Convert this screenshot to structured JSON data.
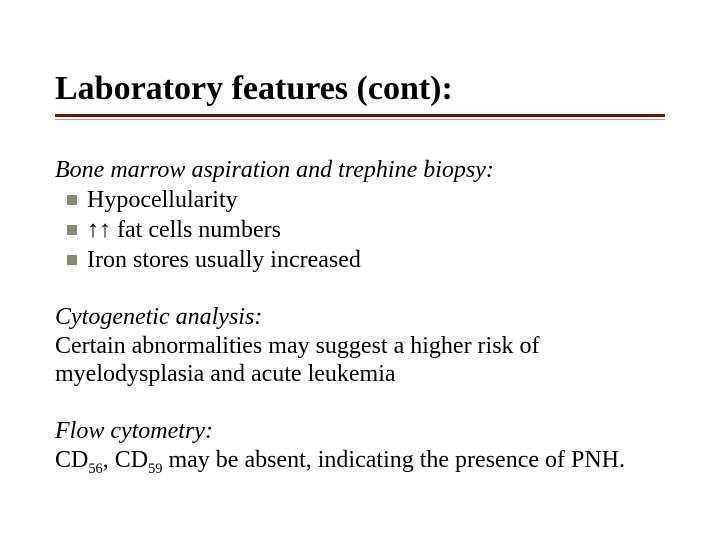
{
  "title": "Laboratory features (cont):",
  "colors": {
    "text": "#000000",
    "bg": "#ffffff",
    "rule_top": "#7d0d0d",
    "rule_bot": "#b9a87e",
    "bullet": "#888a74"
  },
  "typography": {
    "title_fontsize_pt": 26,
    "body_fontsize_pt": 18,
    "font_family": "Times New Roman",
    "title_bold": true,
    "section_head_italic": true
  },
  "sec1": {
    "head": "Bone marrow aspiration and trephine biopsy:",
    "b1": "Hypocellularity",
    "b2": "↑↑ fat cells numbers",
    "b3": "Iron stores usually increased"
  },
  "sec2": {
    "head": "Cytogenetic analysis:",
    "body": "Certain abnormalities may suggest a higher risk of myelodysplasia and acute leukemia"
  },
  "sec3": {
    "head": "Flow cytometry:",
    "cd1_label": "CD",
    "cd1_sub": "56",
    "sep": ", ",
    "cd2_label": "CD",
    "cd2_sub": "59",
    "tail": " may be absent, indicating the presence of PNH."
  }
}
